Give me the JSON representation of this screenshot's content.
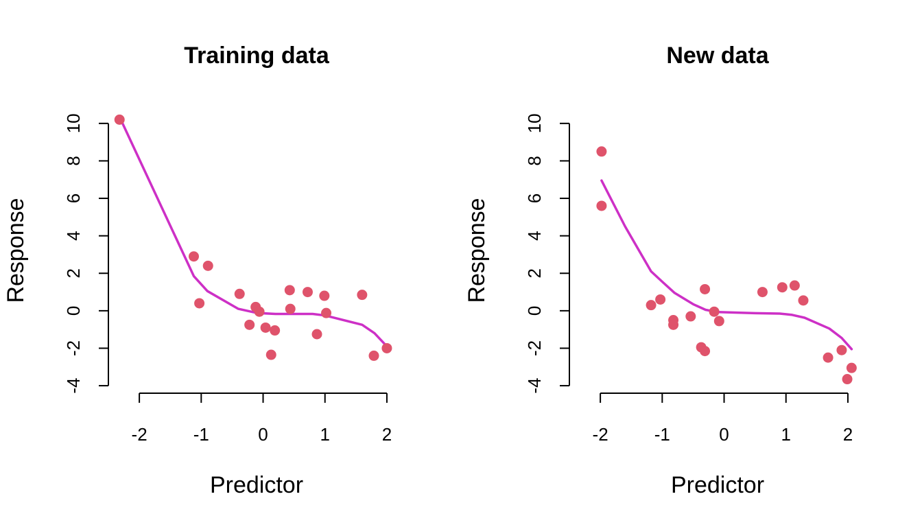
{
  "colors": {
    "points": "#DF536B",
    "fit_line": "#CD30C6"
  },
  "chart_data": [
    {
      "type": "scatter",
      "title": "Training data",
      "xlabel": "Predictor",
      "ylabel": "Response",
      "xlim": [
        -2.5,
        2.3
      ],
      "ylim": [
        -4.4,
        10.8
      ],
      "xticks": [
        -2,
        -1,
        0,
        1,
        2
      ],
      "yticks": [
        -4,
        -2,
        0,
        2,
        4,
        6,
        8,
        10
      ],
      "grid": false,
      "series": [
        {
          "kind": "points",
          "x": [
            -2.32,
            -1.12,
            -1.03,
            -0.89,
            -0.38,
            -0.22,
            -0.12,
            -0.06,
            0.04,
            0.13,
            0.19,
            0.43,
            0.44,
            0.72,
            0.87,
            0.99,
            1.02,
            1.6,
            1.79,
            2.0
          ],
          "y": [
            10.2,
            2.9,
            0.4,
            2.4,
            0.9,
            -0.75,
            0.2,
            -0.05,
            -0.9,
            -2.35,
            -1.05,
            1.1,
            0.1,
            1.0,
            -1.25,
            0.8,
            -0.12,
            0.85,
            -2.4,
            -2.0
          ]
        },
        {
          "kind": "line",
          "x": [
            -2.32,
            -1.12,
            -0.9,
            -0.4,
            -0.1,
            0.2,
            0.8,
            1.0,
            1.6,
            1.8,
            2.0
          ],
          "y": [
            10.35,
            1.85,
            1.05,
            0.1,
            -0.12,
            -0.17,
            -0.17,
            -0.25,
            -0.75,
            -1.2,
            -1.9
          ]
        }
      ]
    },
    {
      "type": "scatter",
      "title": "New data",
      "xlabel": "Predictor",
      "ylabel": "Response",
      "xlim": [
        -2.5,
        2.3
      ],
      "ylim": [
        -4.4,
        10.8
      ],
      "xticks": [
        -2,
        -1,
        0,
        1,
        2
      ],
      "yticks": [
        -4,
        -2,
        0,
        2,
        4,
        6,
        8,
        10
      ],
      "grid": false,
      "series": [
        {
          "kind": "points",
          "x": [
            -1.98,
            -1.98,
            -1.18,
            -1.03,
            -0.82,
            -0.82,
            -0.54,
            -0.37,
            -0.31,
            -0.31,
            -0.16,
            -0.08,
            0.62,
            0.94,
            1.14,
            1.28,
            1.68,
            1.9,
            1.99,
            2.06
          ],
          "y": [
            8.5,
            5.6,
            0.3,
            0.6,
            -0.5,
            -0.75,
            -0.3,
            -1.95,
            -2.15,
            1.15,
            -0.05,
            -0.55,
            1.0,
            1.25,
            1.35,
            0.55,
            -2.5,
            -2.1,
            -3.65,
            -3.05
          ]
        },
        {
          "kind": "line",
          "x": [
            -1.98,
            -1.6,
            -1.18,
            -1.0,
            -0.8,
            -0.5,
            -0.3,
            -0.1,
            0.5,
            0.9,
            1.1,
            1.3,
            1.7,
            1.9,
            2.06
          ],
          "y": [
            6.95,
            4.5,
            2.1,
            1.55,
            0.95,
            0.35,
            0.05,
            -0.07,
            -0.13,
            -0.15,
            -0.22,
            -0.37,
            -0.95,
            -1.45,
            -2.05
          ]
        }
      ]
    }
  ]
}
